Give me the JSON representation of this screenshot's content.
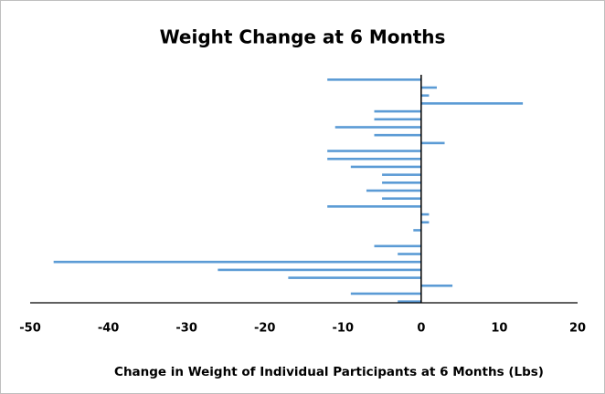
{
  "chart_data": {
    "type": "barh",
    "title": "Weight Change at 6 Months",
    "x_label": "Change in Weight of Individual Participants at 6 Months (Lbs)",
    "categories": [
      null,
      null,
      null,
      null,
      null,
      null,
      null,
      null,
      null,
      null,
      null,
      null,
      null,
      null,
      null,
      null,
      null,
      null,
      null,
      null,
      null,
      null,
      null,
      null,
      null,
      null,
      null,
      null,
      null
    ],
    "values": [
      -12,
      2,
      1,
      13,
      -6,
      -6,
      -11,
      -6,
      3,
      -12,
      -12,
      -9,
      -5,
      -5,
      -7,
      -5,
      -12,
      1,
      1,
      -1,
      0,
      -6,
      -3,
      -47,
      -26,
      -17,
      4,
      -9,
      -3
    ],
    "color": "#5b9bd5",
    "xlim": [
      -50,
      20
    ],
    "xticks": [
      -50,
      -40,
      -30,
      -20,
      -10,
      0,
      10,
      20
    ]
  }
}
